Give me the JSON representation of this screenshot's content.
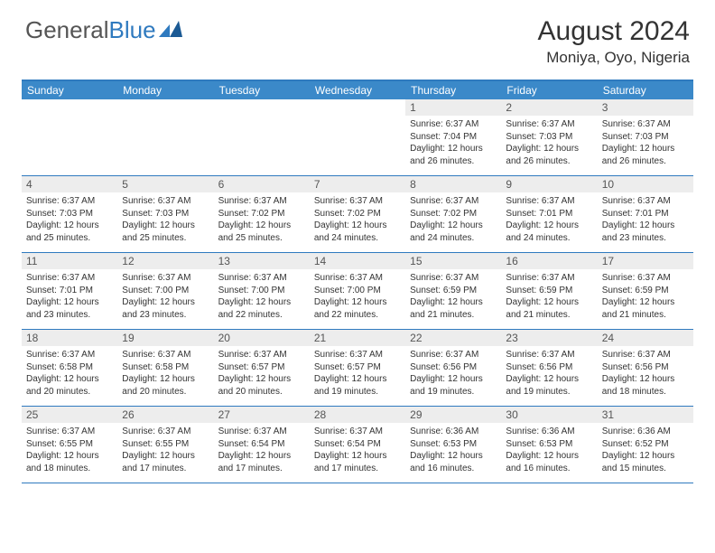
{
  "brand": {
    "part1": "General",
    "part2": "Blue"
  },
  "title": "August 2024",
  "location": "Moniya, Oyo, Nigeria",
  "colors": {
    "header_bg": "#3b89c9",
    "border": "#2f7abf",
    "date_bg": "#ededed",
    "text": "#333333"
  },
  "dow": [
    "Sunday",
    "Monday",
    "Tuesday",
    "Wednesday",
    "Thursday",
    "Friday",
    "Saturday"
  ],
  "weeks": [
    [
      {
        "blank": true
      },
      {
        "blank": true
      },
      {
        "blank": true
      },
      {
        "blank": true
      },
      {
        "d": "1",
        "sr": "6:37 AM",
        "ss": "7:04 PM",
        "dl": "12 hours and 26 minutes."
      },
      {
        "d": "2",
        "sr": "6:37 AM",
        "ss": "7:03 PM",
        "dl": "12 hours and 26 minutes."
      },
      {
        "d": "3",
        "sr": "6:37 AM",
        "ss": "7:03 PM",
        "dl": "12 hours and 26 minutes."
      }
    ],
    [
      {
        "d": "4",
        "sr": "6:37 AM",
        "ss": "7:03 PM",
        "dl": "12 hours and 25 minutes."
      },
      {
        "d": "5",
        "sr": "6:37 AM",
        "ss": "7:03 PM",
        "dl": "12 hours and 25 minutes."
      },
      {
        "d": "6",
        "sr": "6:37 AM",
        "ss": "7:02 PM",
        "dl": "12 hours and 25 minutes."
      },
      {
        "d": "7",
        "sr": "6:37 AM",
        "ss": "7:02 PM",
        "dl": "12 hours and 24 minutes."
      },
      {
        "d": "8",
        "sr": "6:37 AM",
        "ss": "7:02 PM",
        "dl": "12 hours and 24 minutes."
      },
      {
        "d": "9",
        "sr": "6:37 AM",
        "ss": "7:01 PM",
        "dl": "12 hours and 24 minutes."
      },
      {
        "d": "10",
        "sr": "6:37 AM",
        "ss": "7:01 PM",
        "dl": "12 hours and 23 minutes."
      }
    ],
    [
      {
        "d": "11",
        "sr": "6:37 AM",
        "ss": "7:01 PM",
        "dl": "12 hours and 23 minutes."
      },
      {
        "d": "12",
        "sr": "6:37 AM",
        "ss": "7:00 PM",
        "dl": "12 hours and 23 minutes."
      },
      {
        "d": "13",
        "sr": "6:37 AM",
        "ss": "7:00 PM",
        "dl": "12 hours and 22 minutes."
      },
      {
        "d": "14",
        "sr": "6:37 AM",
        "ss": "7:00 PM",
        "dl": "12 hours and 22 minutes."
      },
      {
        "d": "15",
        "sr": "6:37 AM",
        "ss": "6:59 PM",
        "dl": "12 hours and 21 minutes."
      },
      {
        "d": "16",
        "sr": "6:37 AM",
        "ss": "6:59 PM",
        "dl": "12 hours and 21 minutes."
      },
      {
        "d": "17",
        "sr": "6:37 AM",
        "ss": "6:59 PM",
        "dl": "12 hours and 21 minutes."
      }
    ],
    [
      {
        "d": "18",
        "sr": "6:37 AM",
        "ss": "6:58 PM",
        "dl": "12 hours and 20 minutes."
      },
      {
        "d": "19",
        "sr": "6:37 AM",
        "ss": "6:58 PM",
        "dl": "12 hours and 20 minutes."
      },
      {
        "d": "20",
        "sr": "6:37 AM",
        "ss": "6:57 PM",
        "dl": "12 hours and 20 minutes."
      },
      {
        "d": "21",
        "sr": "6:37 AM",
        "ss": "6:57 PM",
        "dl": "12 hours and 19 minutes."
      },
      {
        "d": "22",
        "sr": "6:37 AM",
        "ss": "6:56 PM",
        "dl": "12 hours and 19 minutes."
      },
      {
        "d": "23",
        "sr": "6:37 AM",
        "ss": "6:56 PM",
        "dl": "12 hours and 19 minutes."
      },
      {
        "d": "24",
        "sr": "6:37 AM",
        "ss": "6:56 PM",
        "dl": "12 hours and 18 minutes."
      }
    ],
    [
      {
        "d": "25",
        "sr": "6:37 AM",
        "ss": "6:55 PM",
        "dl": "12 hours and 18 minutes."
      },
      {
        "d": "26",
        "sr": "6:37 AM",
        "ss": "6:55 PM",
        "dl": "12 hours and 17 minutes."
      },
      {
        "d": "27",
        "sr": "6:37 AM",
        "ss": "6:54 PM",
        "dl": "12 hours and 17 minutes."
      },
      {
        "d": "28",
        "sr": "6:37 AM",
        "ss": "6:54 PM",
        "dl": "12 hours and 17 minutes."
      },
      {
        "d": "29",
        "sr": "6:36 AM",
        "ss": "6:53 PM",
        "dl": "12 hours and 16 minutes."
      },
      {
        "d": "30",
        "sr": "6:36 AM",
        "ss": "6:53 PM",
        "dl": "12 hours and 16 minutes."
      },
      {
        "d": "31",
        "sr": "6:36 AM",
        "ss": "6:52 PM",
        "dl": "12 hours and 15 minutes."
      }
    ]
  ],
  "labels": {
    "sunrise": "Sunrise:",
    "sunset": "Sunset:",
    "daylight": "Daylight:"
  }
}
